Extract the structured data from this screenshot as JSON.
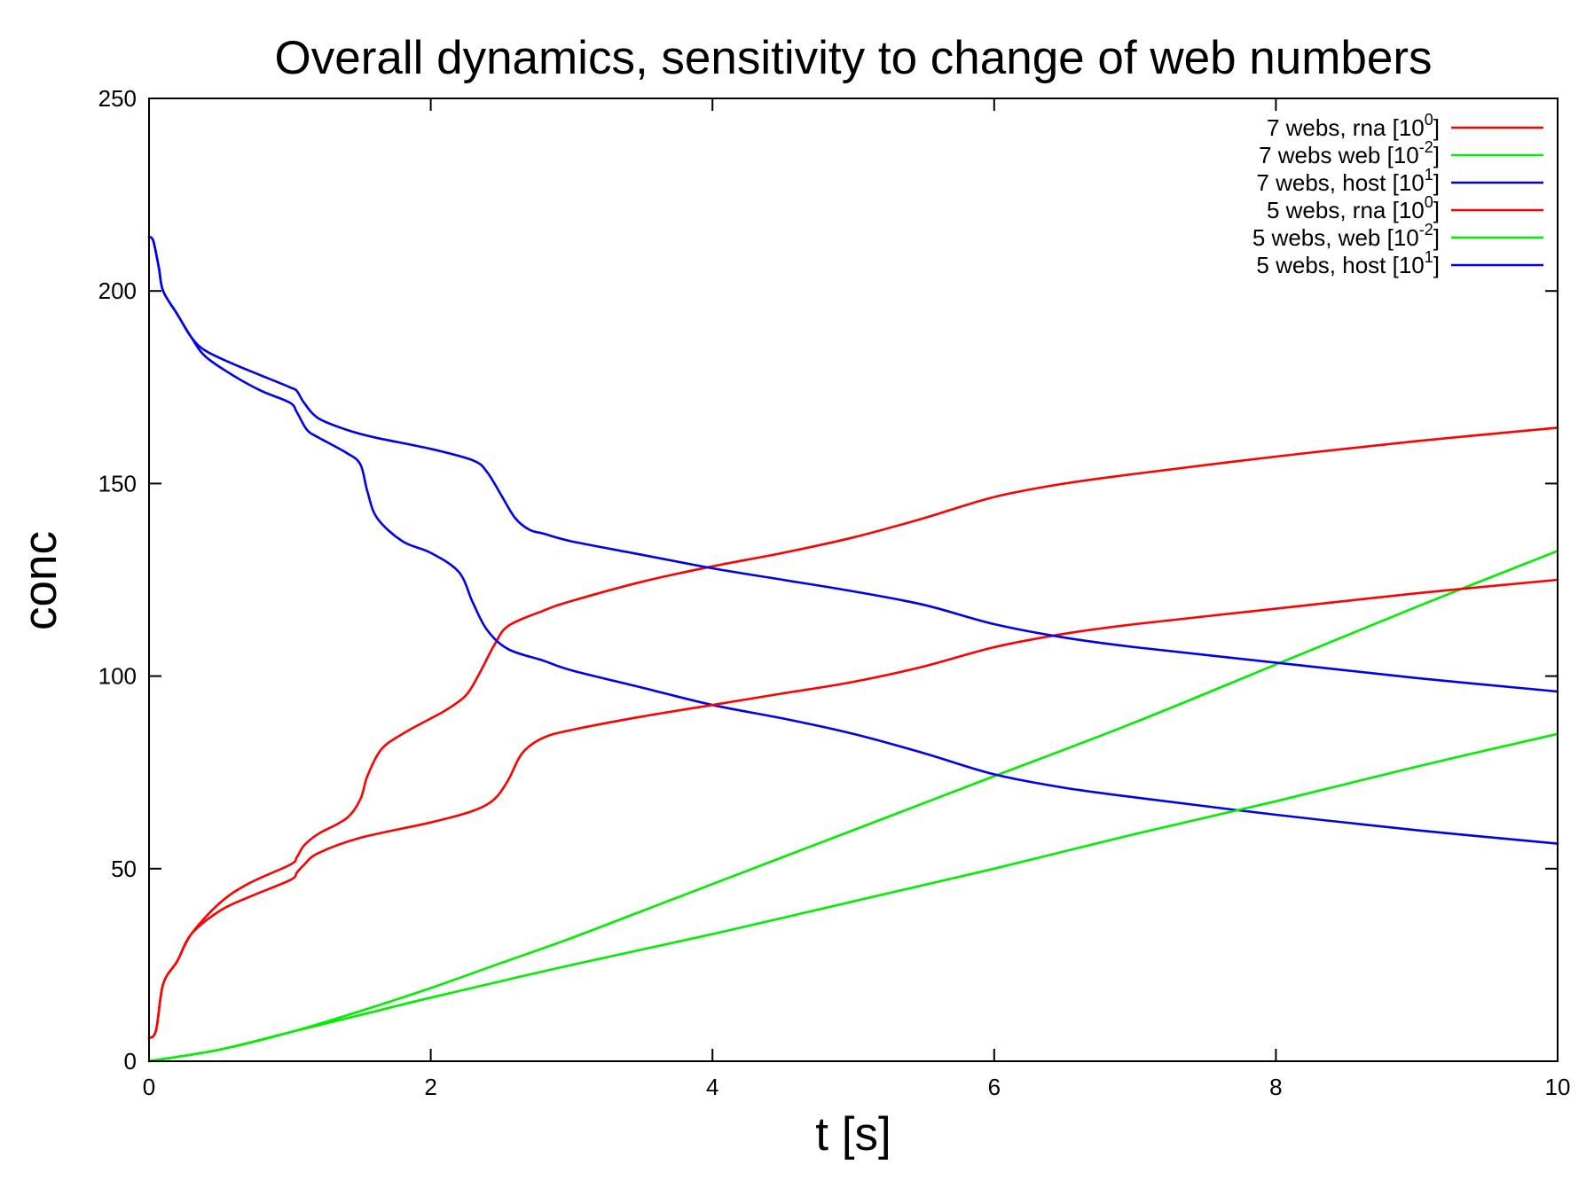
{
  "chart_data": {
    "type": "line",
    "title": "Overall dynamics, sensitivity to change of web numbers",
    "xlabel": "t [s]",
    "ylabel": "conc",
    "xlim": [
      0,
      10
    ],
    "ylim": [
      0,
      250
    ],
    "xticks": [
      0,
      2,
      4,
      6,
      8,
      10
    ],
    "yticks": [
      0,
      50,
      100,
      150,
      200,
      250
    ],
    "grid": false,
    "legend_position": "top-right",
    "series": [
      {
        "name": "7 webs, rna [10^0]",
        "label_text": "7 webs, rna [10",
        "label_exp": "0",
        "label_close": "]",
        "color": "#ff0000",
        "points": [
          [
            0,
            6
          ],
          [
            0.05,
            8
          ],
          [
            0.1,
            20
          ],
          [
            0.2,
            26
          ],
          [
            0.3,
            33
          ],
          [
            0.5,
            41
          ],
          [
            0.7,
            46
          ],
          [
            1.0,
            51
          ],
          [
            1.05,
            53
          ],
          [
            1.1,
            56
          ],
          [
            1.2,
            59
          ],
          [
            1.4,
            63
          ],
          [
            1.5,
            68
          ],
          [
            1.55,
            74
          ],
          [
            1.65,
            81
          ],
          [
            1.8,
            85
          ],
          [
            2.0,
            89
          ],
          [
            2.1,
            91
          ],
          [
            2.25,
            95
          ],
          [
            2.35,
            101
          ],
          [
            2.45,
            108
          ],
          [
            2.55,
            113
          ],
          [
            2.8,
            117
          ],
          [
            3.0,
            119.5
          ],
          [
            3.5,
            124.5
          ],
          [
            4.0,
            128.5
          ],
          [
            4.5,
            132
          ],
          [
            5.0,
            136
          ],
          [
            5.5,
            141
          ],
          [
            6.0,
            146.5
          ],
          [
            6.5,
            150
          ],
          [
            7.0,
            152.5
          ],
          [
            8.0,
            157
          ],
          [
            9.0,
            161
          ],
          [
            10.0,
            164.5
          ]
        ]
      },
      {
        "name": "7 webs web [10^-2]",
        "label_text": "7 webs web [10",
        "label_exp": "-2",
        "label_close": "]",
        "color": "#00ee00",
        "points": [
          [
            0,
            0
          ],
          [
            0.5,
            3
          ],
          [
            1.0,
            7.5
          ],
          [
            1.5,
            13
          ],
          [
            2.0,
            19
          ],
          [
            2.5,
            25.5
          ],
          [
            3.0,
            32
          ],
          [
            3.5,
            39
          ],
          [
            4.0,
            46
          ],
          [
            5.0,
            60
          ],
          [
            6.0,
            74
          ],
          [
            7.0,
            88
          ],
          [
            8.0,
            103
          ],
          [
            9.0,
            118
          ],
          [
            10.0,
            132.5
          ]
        ]
      },
      {
        "name": "7 webs, host [10^1]",
        "label_text": "7 webs, host [10",
        "label_exp": "1",
        "label_close": "]",
        "color": "#0000ee",
        "points": [
          [
            0,
            214
          ],
          [
            0.03,
            213
          ],
          [
            0.07,
            206
          ],
          [
            0.1,
            200
          ],
          [
            0.2,
            194
          ],
          [
            0.3,
            188
          ],
          [
            0.4,
            183
          ],
          [
            0.6,
            178
          ],
          [
            0.8,
            174
          ],
          [
            1.0,
            171
          ],
          [
            1.05,
            168.5
          ],
          [
            1.12,
            164
          ],
          [
            1.2,
            162
          ],
          [
            1.4,
            158
          ],
          [
            1.5,
            155
          ],
          [
            1.55,
            148
          ],
          [
            1.62,
            141
          ],
          [
            1.8,
            135
          ],
          [
            2.0,
            132
          ],
          [
            2.2,
            127
          ],
          [
            2.3,
            119
          ],
          [
            2.4,
            112
          ],
          [
            2.55,
            107
          ],
          [
            2.8,
            104
          ],
          [
            3.0,
            101.5
          ],
          [
            3.5,
            97
          ],
          [
            4.0,
            92.5
          ],
          [
            4.5,
            89
          ],
          [
            5.0,
            85
          ],
          [
            5.5,
            80
          ],
          [
            6.0,
            74.5
          ],
          [
            6.5,
            71
          ],
          [
            7.0,
            68.5
          ],
          [
            8.0,
            64
          ],
          [
            9.0,
            60
          ],
          [
            10.0,
            56.5
          ]
        ]
      },
      {
        "name": "5 webs, rna [10^0]",
        "label_text": "5 webs, rna [10",
        "label_exp": "0",
        "label_close": "]",
        "color": "#ff0000",
        "points": [
          [
            0,
            6
          ],
          [
            0.05,
            8
          ],
          [
            0.1,
            20
          ],
          [
            0.2,
            26
          ],
          [
            0.3,
            33
          ],
          [
            0.5,
            39
          ],
          [
            0.7,
            42.5
          ],
          [
            1.0,
            47
          ],
          [
            1.05,
            49
          ],
          [
            1.1,
            51
          ],
          [
            1.2,
            54
          ],
          [
            1.5,
            58
          ],
          [
            2.0,
            62
          ],
          [
            2.3,
            65
          ],
          [
            2.45,
            68
          ],
          [
            2.55,
            73
          ],
          [
            2.65,
            80
          ],
          [
            2.8,
            84
          ],
          [
            3.0,
            86
          ],
          [
            3.5,
            89.5
          ],
          [
            4.0,
            92.5
          ],
          [
            4.5,
            95.5
          ],
          [
            5.0,
            98.5
          ],
          [
            5.5,
            102.5
          ],
          [
            6.0,
            107.5
          ],
          [
            6.5,
            111
          ],
          [
            7.0,
            113.5
          ],
          [
            8.0,
            117.5
          ],
          [
            9.0,
            121.5
          ],
          [
            10.0,
            125
          ]
        ]
      },
      {
        "name": "5 webs, web [10^-2]",
        "label_text": "5 webs, web [10",
        "label_exp": "-2",
        "label_close": "]",
        "color": "#00ee00",
        "points": [
          [
            0,
            0
          ],
          [
            0.5,
            3
          ],
          [
            1.0,
            7.5
          ],
          [
            1.5,
            12
          ],
          [
            2.0,
            16.5
          ],
          [
            3.0,
            25
          ],
          [
            4.0,
            33
          ],
          [
            5.0,
            41.5
          ],
          [
            6.0,
            50
          ],
          [
            7.0,
            59
          ],
          [
            8.0,
            67.5
          ],
          [
            9.0,
            76.5
          ],
          [
            10.0,
            85
          ]
        ]
      },
      {
        "name": "5 webs, host [10^1]",
        "label_text": "5 webs, host [10",
        "label_exp": "1",
        "label_close": "]",
        "color": "#0000ee",
        "points": [
          [
            0,
            214
          ],
          [
            0.03,
            213
          ],
          [
            0.07,
            206
          ],
          [
            0.1,
            200
          ],
          [
            0.2,
            194
          ],
          [
            0.3,
            188
          ],
          [
            0.4,
            184.5
          ],
          [
            0.6,
            181
          ],
          [
            0.8,
            178
          ],
          [
            1.0,
            175
          ],
          [
            1.05,
            174
          ],
          [
            1.1,
            171
          ],
          [
            1.2,
            167
          ],
          [
            1.4,
            164
          ],
          [
            1.6,
            162
          ],
          [
            2.0,
            159
          ],
          [
            2.3,
            156
          ],
          [
            2.4,
            153
          ],
          [
            2.5,
            147
          ],
          [
            2.6,
            141
          ],
          [
            2.7,
            138
          ],
          [
            2.8,
            137
          ],
          [
            3.0,
            135
          ],
          [
            3.5,
            131.5
          ],
          [
            4.0,
            128
          ],
          [
            4.5,
            125
          ],
          [
            5.0,
            122
          ],
          [
            5.5,
            118.5
          ],
          [
            6.0,
            113.5
          ],
          [
            6.5,
            110
          ],
          [
            7.0,
            107.5
          ],
          [
            8.0,
            103.5
          ],
          [
            9.0,
            99.5
          ],
          [
            10.0,
            96
          ]
        ]
      }
    ]
  }
}
